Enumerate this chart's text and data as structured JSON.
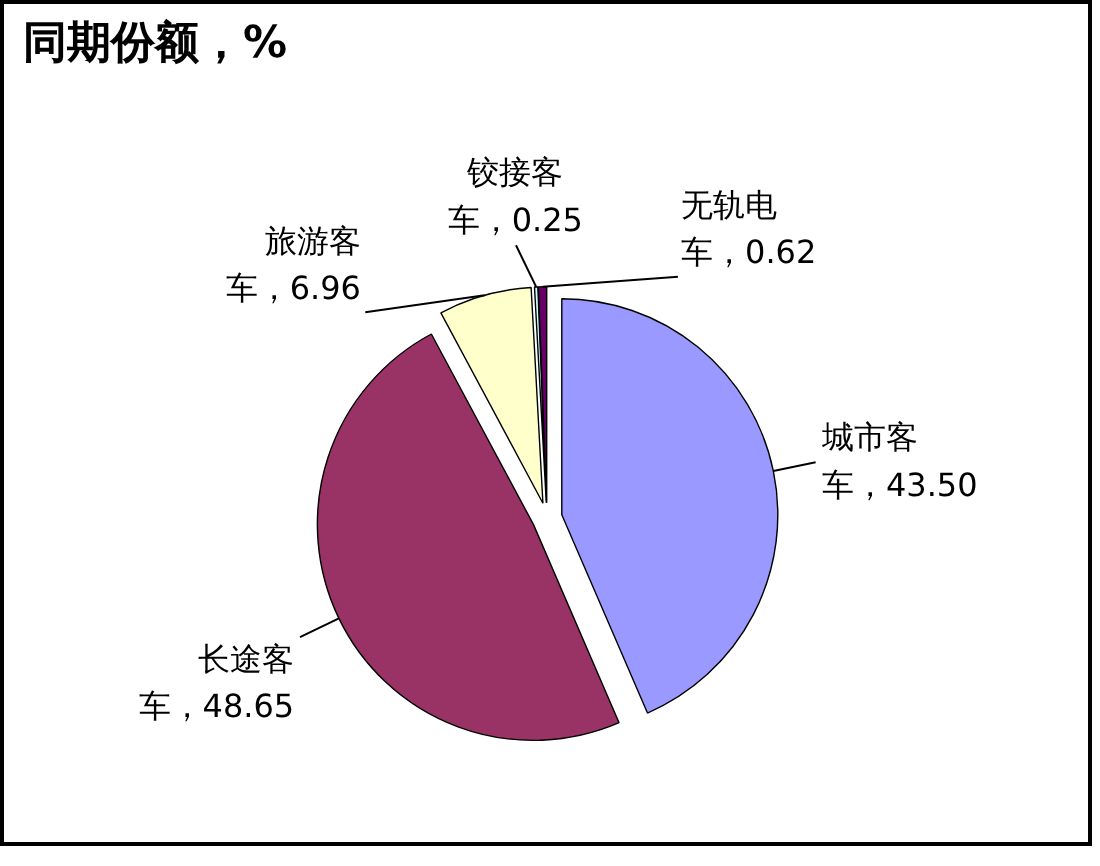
{
  "chart_data": {
    "type": "pie",
    "title": "同期份额，%",
    "categories": [
      "城市客车",
      "长途客车",
      "旅游客车",
      "铰接客车",
      "无轨电车"
    ],
    "values": [
      43.5,
      48.65,
      6.96,
      0.25,
      0.62
    ],
    "colors": [
      "#9999ff",
      "#993366",
      "#ffffcc",
      "#ccffff",
      "#660066"
    ],
    "value_labels": [
      "43.50",
      "48.65",
      "6.96",
      "0.25",
      "0.62"
    ]
  }
}
